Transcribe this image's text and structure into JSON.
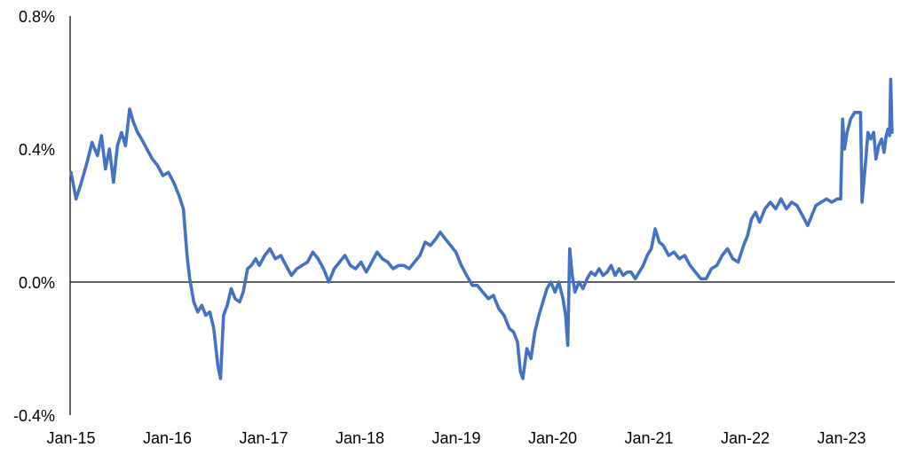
{
  "chart_data": {
    "type": "line",
    "title": "",
    "xlabel": "",
    "ylabel": "",
    "x_ticks": [
      "Jan-15",
      "Jan-16",
      "Jan-17",
      "Jan-18",
      "Jan-19",
      "Jan-20",
      "Jan-21",
      "Jan-22",
      "Jan-23"
    ],
    "y_ticks": [
      "0.8%",
      "0.4%",
      "0.0%",
      "-0.4%"
    ],
    "y_tick_values": [
      0.8,
      0.4,
      0.0,
      -0.4
    ],
    "ylim": [
      -0.4,
      0.8
    ],
    "xlim": [
      "2015-01",
      "2023-07"
    ],
    "grid": false,
    "legend": "none",
    "zero_line": true,
    "series": [
      {
        "color": "#4472C4",
        "points": [
          [
            "2015-01-01",
            0.33
          ],
          [
            "2015-01-20",
            0.25
          ],
          [
            "2015-02-10",
            0.3
          ],
          [
            "2015-03-01",
            0.36
          ],
          [
            "2015-03-20",
            0.42
          ],
          [
            "2015-04-10",
            0.38
          ],
          [
            "2015-04-25",
            0.44
          ],
          [
            "2015-05-10",
            0.34
          ],
          [
            "2015-05-25",
            0.4
          ],
          [
            "2015-06-10",
            0.3
          ],
          [
            "2015-06-25",
            0.41
          ],
          [
            "2015-07-10",
            0.45
          ],
          [
            "2015-07-25",
            0.41
          ],
          [
            "2015-08-10",
            0.52
          ],
          [
            "2015-08-25",
            0.48
          ],
          [
            "2015-09-10",
            0.45
          ],
          [
            "2015-09-25",
            0.43
          ],
          [
            "2015-10-15",
            0.4
          ],
          [
            "2015-11-05",
            0.37
          ],
          [
            "2015-11-25",
            0.35
          ],
          [
            "2015-12-15",
            0.32
          ],
          [
            "2016-01-05",
            0.33
          ],
          [
            "2016-01-25",
            0.3
          ],
          [
            "2016-02-15",
            0.26
          ],
          [
            "2016-03-01",
            0.22
          ],
          [
            "2016-03-15",
            0.08
          ],
          [
            "2016-03-25",
            0.01
          ],
          [
            "2016-04-10",
            -0.06
          ],
          [
            "2016-04-25",
            -0.09
          ],
          [
            "2016-05-10",
            -0.07
          ],
          [
            "2016-05-25",
            -0.1
          ],
          [
            "2016-06-10",
            -0.09
          ],
          [
            "2016-06-25",
            -0.14
          ],
          [
            "2016-07-10",
            -0.25
          ],
          [
            "2016-07-20",
            -0.29
          ],
          [
            "2016-08-01",
            -0.1
          ],
          [
            "2016-08-15",
            -0.07
          ],
          [
            "2016-08-30",
            -0.02
          ],
          [
            "2016-09-15",
            -0.05
          ],
          [
            "2016-10-01",
            -0.06
          ],
          [
            "2016-10-15",
            -0.03
          ],
          [
            "2016-11-01",
            0.04
          ],
          [
            "2016-11-15",
            0.05
          ],
          [
            "2016-12-01",
            0.07
          ],
          [
            "2016-12-15",
            0.05
          ],
          [
            "2017-01-05",
            0.08
          ],
          [
            "2017-01-25",
            0.1
          ],
          [
            "2017-02-15",
            0.07
          ],
          [
            "2017-03-05",
            0.08
          ],
          [
            "2017-03-25",
            0.05
          ],
          [
            "2017-04-15",
            0.02
          ],
          [
            "2017-05-05",
            0.04
          ],
          [
            "2017-05-25",
            0.05
          ],
          [
            "2017-06-15",
            0.06
          ],
          [
            "2017-07-05",
            0.09
          ],
          [
            "2017-07-25",
            0.07
          ],
          [
            "2017-08-15",
            0.04
          ],
          [
            "2017-09-05",
            0.0
          ],
          [
            "2017-09-25",
            0.04
          ],
          [
            "2017-10-15",
            0.06
          ],
          [
            "2017-11-05",
            0.08
          ],
          [
            "2017-11-25",
            0.05
          ],
          [
            "2017-12-15",
            0.04
          ],
          [
            "2018-01-05",
            0.06
          ],
          [
            "2018-01-25",
            0.03
          ],
          [
            "2018-02-15",
            0.06
          ],
          [
            "2018-03-05",
            0.09
          ],
          [
            "2018-03-25",
            0.07
          ],
          [
            "2018-04-15",
            0.06
          ],
          [
            "2018-05-05",
            0.04
          ],
          [
            "2018-05-25",
            0.05
          ],
          [
            "2018-06-15",
            0.05
          ],
          [
            "2018-07-05",
            0.04
          ],
          [
            "2018-07-25",
            0.06
          ],
          [
            "2018-08-15",
            0.08
          ],
          [
            "2018-09-05",
            0.12
          ],
          [
            "2018-09-25",
            0.11
          ],
          [
            "2018-10-15",
            0.13
          ],
          [
            "2018-11-01",
            0.15
          ],
          [
            "2018-11-20",
            0.13
          ],
          [
            "2018-12-10",
            0.11
          ],
          [
            "2018-12-30",
            0.09
          ],
          [
            "2019-01-20",
            0.05
          ],
          [
            "2019-02-10",
            0.02
          ],
          [
            "2019-03-01",
            -0.01
          ],
          [
            "2019-03-20",
            -0.01
          ],
          [
            "2019-04-10",
            -0.03
          ],
          [
            "2019-05-01",
            -0.05
          ],
          [
            "2019-05-20",
            -0.04
          ],
          [
            "2019-06-10",
            -0.08
          ],
          [
            "2019-06-30",
            -0.1
          ],
          [
            "2019-07-20",
            -0.14
          ],
          [
            "2019-08-05",
            -0.15
          ],
          [
            "2019-08-20",
            -0.18
          ],
          [
            "2019-09-01",
            -0.27
          ],
          [
            "2019-09-10",
            -0.29
          ],
          [
            "2019-09-25",
            -0.2
          ],
          [
            "2019-10-10",
            -0.23
          ],
          [
            "2019-10-25",
            -0.15
          ],
          [
            "2019-11-10",
            -0.1
          ],
          [
            "2019-11-25",
            -0.06
          ],
          [
            "2019-12-10",
            -0.02
          ],
          [
            "2019-12-25",
            0.0
          ],
          [
            "2020-01-10",
            -0.03
          ],
          [
            "2020-01-25",
            0.0
          ],
          [
            "2020-02-10",
            -0.05
          ],
          [
            "2020-02-20",
            -0.1
          ],
          [
            "2020-02-28",
            -0.19
          ],
          [
            "2020-03-05",
            0.1
          ],
          [
            "2020-03-15",
            0.02
          ],
          [
            "2020-03-25",
            -0.03
          ],
          [
            "2020-04-10",
            0.0
          ],
          [
            "2020-04-25",
            -0.02
          ],
          [
            "2020-05-10",
            0.01
          ],
          [
            "2020-05-25",
            0.03
          ],
          [
            "2020-06-10",
            0.02
          ],
          [
            "2020-06-25",
            0.04
          ],
          [
            "2020-07-10",
            0.02
          ],
          [
            "2020-07-25",
            0.03
          ],
          [
            "2020-08-10",
            0.05
          ],
          [
            "2020-08-25",
            0.02
          ],
          [
            "2020-09-10",
            0.04
          ],
          [
            "2020-09-25",
            0.02
          ],
          [
            "2020-10-10",
            0.03
          ],
          [
            "2020-10-25",
            0.03
          ],
          [
            "2020-11-10",
            0.01
          ],
          [
            "2020-11-25",
            0.03
          ],
          [
            "2020-12-10",
            0.05
          ],
          [
            "2020-12-25",
            0.08
          ],
          [
            "2021-01-10",
            0.1
          ],
          [
            "2021-01-25",
            0.16
          ],
          [
            "2021-02-10",
            0.12
          ],
          [
            "2021-02-25",
            0.11
          ],
          [
            "2021-03-15",
            0.08
          ],
          [
            "2021-04-05",
            0.09
          ],
          [
            "2021-04-25",
            0.07
          ],
          [
            "2021-05-15",
            0.08
          ],
          [
            "2021-06-05",
            0.05
          ],
          [
            "2021-06-25",
            0.03
          ],
          [
            "2021-07-15",
            0.01
          ],
          [
            "2021-08-05",
            0.01
          ],
          [
            "2021-08-25",
            0.04
          ],
          [
            "2021-09-15",
            0.05
          ],
          [
            "2021-10-05",
            0.08
          ],
          [
            "2021-10-25",
            0.1
          ],
          [
            "2021-11-15",
            0.07
          ],
          [
            "2021-12-05",
            0.06
          ],
          [
            "2021-12-25",
            0.11
          ],
          [
            "2022-01-10",
            0.14
          ],
          [
            "2022-01-25",
            0.19
          ],
          [
            "2022-02-10",
            0.21
          ],
          [
            "2022-02-25",
            0.18
          ],
          [
            "2022-03-15",
            0.22
          ],
          [
            "2022-04-05",
            0.24
          ],
          [
            "2022-04-25",
            0.22
          ],
          [
            "2022-05-15",
            0.25
          ],
          [
            "2022-06-05",
            0.22
          ],
          [
            "2022-06-25",
            0.24
          ],
          [
            "2022-07-15",
            0.23
          ],
          [
            "2022-08-05",
            0.2
          ],
          [
            "2022-08-25",
            0.17
          ],
          [
            "2022-09-10",
            0.2
          ],
          [
            "2022-09-25",
            0.23
          ],
          [
            "2022-10-15",
            0.24
          ],
          [
            "2022-11-05",
            0.25
          ],
          [
            "2022-11-25",
            0.24
          ],
          [
            "2022-12-15",
            0.25
          ],
          [
            "2022-12-28",
            0.25
          ],
          [
            "2023-01-05",
            0.49
          ],
          [
            "2023-01-12",
            0.4
          ],
          [
            "2023-01-22",
            0.45
          ],
          [
            "2023-02-05",
            0.49
          ],
          [
            "2023-02-20",
            0.51
          ],
          [
            "2023-03-05",
            0.51
          ],
          [
            "2023-03-12",
            0.51
          ],
          [
            "2023-03-18",
            0.24
          ],
          [
            "2023-03-28",
            0.33
          ],
          [
            "2023-04-10",
            0.45
          ],
          [
            "2023-04-20",
            0.43
          ],
          [
            "2023-05-01",
            0.45
          ],
          [
            "2023-05-10",
            0.37
          ],
          [
            "2023-05-20",
            0.41
          ],
          [
            "2023-06-01",
            0.43
          ],
          [
            "2023-06-10",
            0.39
          ],
          [
            "2023-06-18",
            0.44
          ],
          [
            "2023-06-25",
            0.46
          ],
          [
            "2023-07-01",
            0.44
          ],
          [
            "2023-07-05",
            0.61
          ],
          [
            "2023-07-10",
            0.45
          ]
        ]
      }
    ]
  }
}
